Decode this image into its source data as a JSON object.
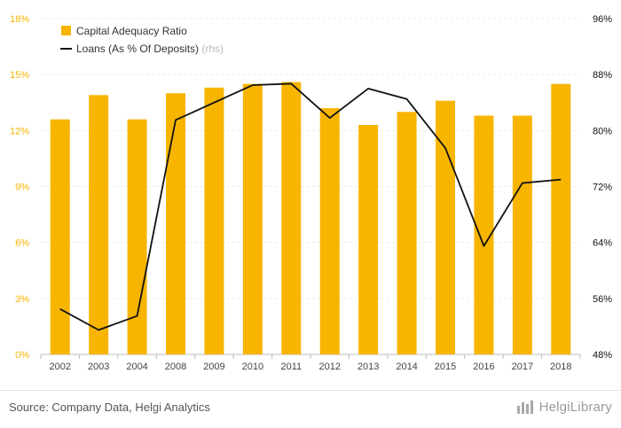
{
  "chart_data": {
    "type": "bar+line",
    "categories": [
      "2002",
      "2003",
      "2004",
      "2008",
      "2009",
      "2010",
      "2011",
      "2012",
      "2013",
      "2014",
      "2015",
      "2016",
      "2017",
      "2018"
    ],
    "series": [
      {
        "name": "Capital Adequacy Ratio",
        "type": "bar",
        "axis": "left",
        "color": "#f7b500",
        "values": [
          12.6,
          13.9,
          12.6,
          14.0,
          14.3,
          14.5,
          14.6,
          13.2,
          12.3,
          13.0,
          13.6,
          12.8,
          12.8,
          14.5
        ]
      },
      {
        "name": "Loans (As % Of Deposits)",
        "legend_suffix": "(rhs)",
        "type": "line",
        "axis": "right",
        "color": "#111111",
        "values": [
          54.5,
          51.5,
          53.5,
          81.5,
          84.0,
          86.5,
          86.7,
          81.8,
          86.0,
          84.5,
          77.5,
          63.5,
          72.5,
          73.0
        ]
      }
    ],
    "y_left": {
      "min": 0,
      "max": 18,
      "ticks": [
        "0%",
        "3%",
        "6%",
        "9%",
        "12%",
        "15%",
        "18%"
      ],
      "color": "#f7b500"
    },
    "y_right": {
      "min": 48,
      "max": 96,
      "ticks": [
        "48%",
        "56%",
        "64%",
        "72%",
        "80%",
        "88%",
        "96%"
      ],
      "color": "#111111"
    },
    "grid": true,
    "legend_position": "top-left"
  },
  "footer": {
    "source": "Source: Company Data, Helgi Analytics",
    "brand": "HelgiLibrary",
    "brand_icon": "helgi-logo-icon"
  }
}
